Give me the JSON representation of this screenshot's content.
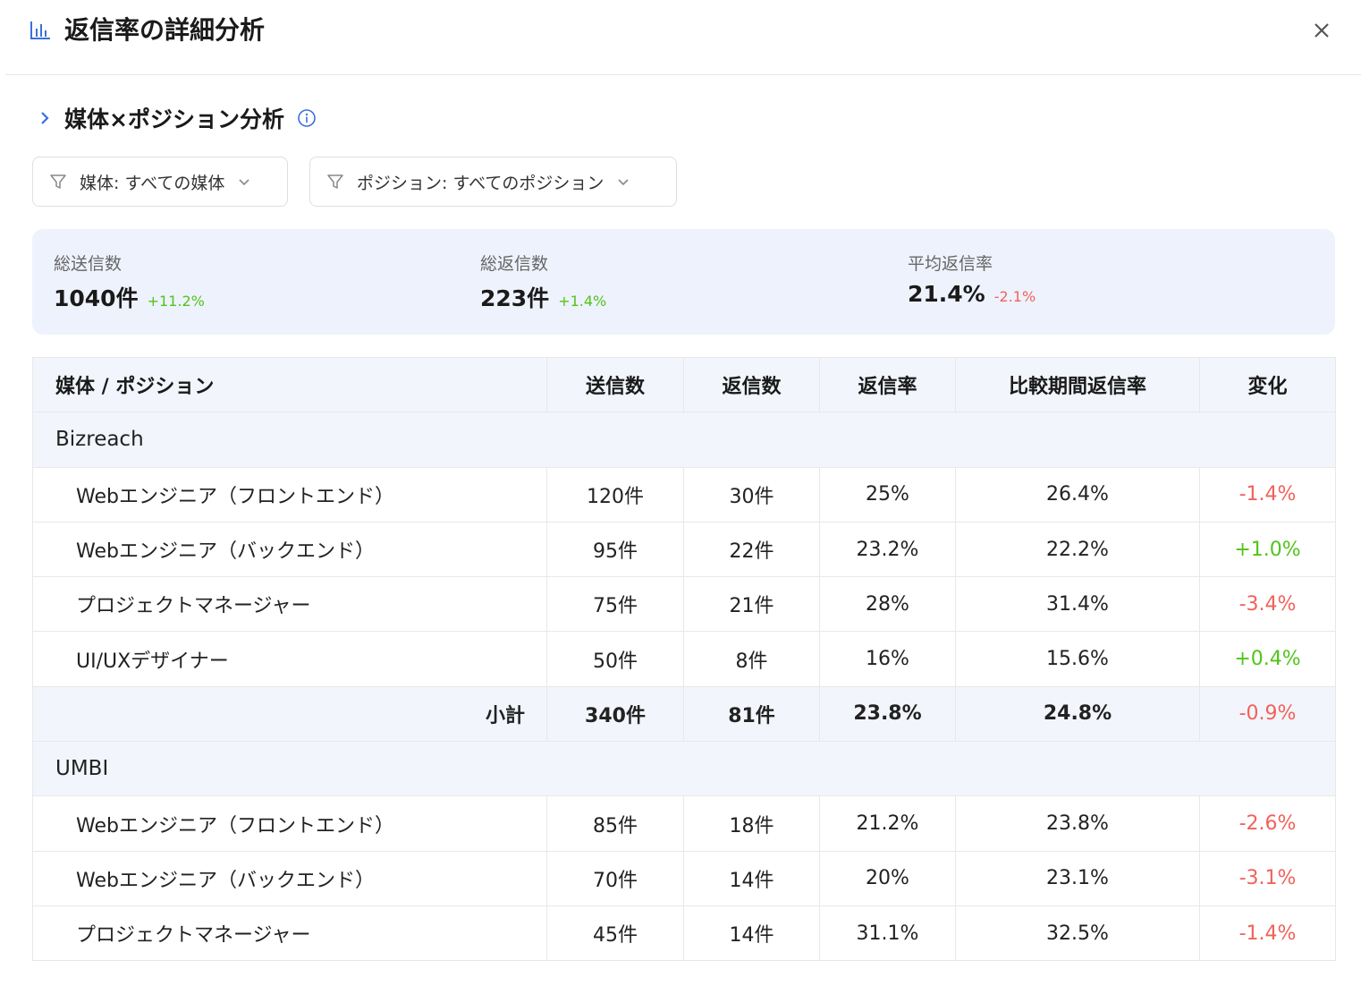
{
  "header": {
    "title": "返信率の詳細分析"
  },
  "section": {
    "title": "媒体×ポジション分析"
  },
  "filters": {
    "media": "媒体: すべての媒体",
    "position": "ポジション: すべてのポジション"
  },
  "summary": {
    "sent": {
      "label": "総送信数",
      "value": "1040件",
      "delta": "+11.2%"
    },
    "replies": {
      "label": "総返信数",
      "value": "223件",
      "delta": "+1.4%"
    },
    "rate": {
      "label": "平均返信率",
      "value": "21.4%",
      "delta": "-2.1%"
    }
  },
  "table": {
    "headers": [
      "媒体 / ポジション",
      "送信数",
      "返信数",
      "返信率",
      "比較期間返信率",
      "変化"
    ],
    "groups": [
      {
        "name": "Bizreach",
        "rows": [
          [
            "Webエンジニア（フロントエンド）",
            "120件",
            "30件",
            "25%",
            "26.4%",
            "-1.4%"
          ],
          [
            "Webエンジニア（バックエンド）",
            "95件",
            "22件",
            "23.2%",
            "22.2%",
            "+1.0%"
          ],
          [
            "プロジェクトマネージャー",
            "75件",
            "21件",
            "28%",
            "31.4%",
            "-3.4%"
          ],
          [
            "UI/UXデザイナー",
            "50件",
            "8件",
            "16%",
            "15.6%",
            "+0.4%"
          ]
        ],
        "subtotal": [
          "小計",
          "340件",
          "81件",
          "23.8%",
          "24.8%",
          "-0.9%"
        ]
      },
      {
        "name": "UMBI",
        "rows": [
          [
            "Webエンジニア（フロントエンド）",
            "85件",
            "18件",
            "21.2%",
            "23.8%",
            "-2.6%"
          ],
          [
            "Webエンジニア（バックエンド）",
            "70件",
            "14件",
            "20%",
            "23.1%",
            "-3.1%"
          ],
          [
            "プロジェクトマネージャー",
            "45件",
            "14件",
            "31.1%",
            "32.5%",
            "-1.4%"
          ]
        ]
      }
    ]
  },
  "colors": {
    "positive": "#52c41a",
    "negative": "#f0625a",
    "accent": "#3b6fe0"
  }
}
